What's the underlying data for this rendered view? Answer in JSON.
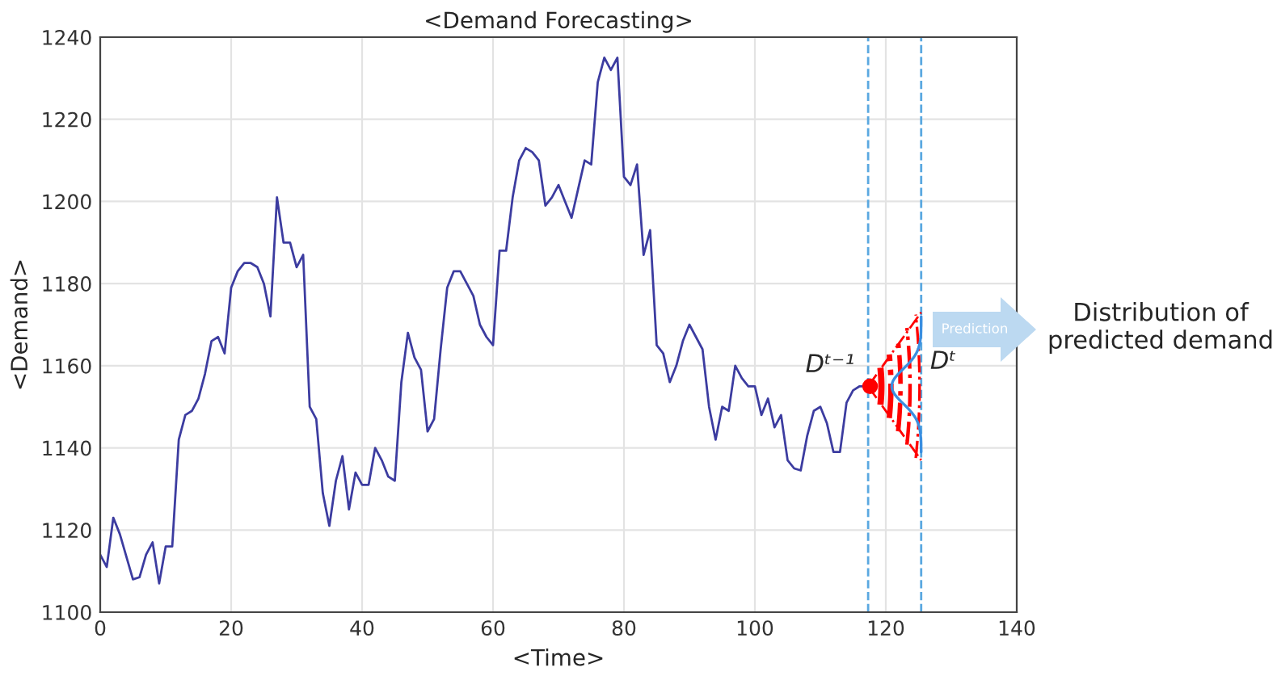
{
  "chart_data": {
    "type": "line",
    "title": "<Demand Forecasting>",
    "xlabel": "<Time>",
    "ylabel": "<Demand>",
    "x": [
      0,
      1,
      2,
      3,
      5,
      6,
      7,
      8,
      9,
      10,
      11,
      12,
      13,
      14,
      15,
      16,
      17,
      18,
      19,
      20,
      21,
      22,
      23,
      24,
      25,
      26,
      27,
      28,
      29,
      30,
      31,
      32,
      33,
      34,
      35,
      36,
      37,
      38,
      39,
      40,
      41,
      42,
      43,
      44,
      45,
      46,
      47,
      48,
      49,
      50,
      51,
      52,
      53,
      54,
      55,
      56,
      57,
      58,
      59,
      60,
      61,
      62,
      63,
      64,
      65,
      66,
      67,
      68,
      69,
      70,
      71,
      72,
      73,
      74,
      75,
      76,
      77,
      78,
      79,
      80,
      81,
      82,
      83,
      84,
      85,
      86,
      87,
      88,
      89,
      90,
      91,
      92,
      93,
      94,
      95,
      96,
      97,
      98,
      99,
      100,
      101,
      102,
      103,
      104,
      105,
      106,
      107,
      108,
      109,
      110,
      111,
      112,
      113,
      114,
      115,
      116,
      117
    ],
    "series": [
      {
        "color": "#3c3ca0",
        "values": [
          1114,
          1111,
          1123,
          1119,
          1108,
          1108.5,
          1114,
          1117,
          1107,
          1116,
          1116,
          1142,
          1148,
          1149,
          1152,
          1158,
          1166,
          1167,
          1163,
          1179,
          1183,
          1185,
          1185,
          1184,
          1180,
          1172,
          1201,
          1190,
          1190,
          1184,
          1187,
          1150,
          1147,
          1129,
          1121,
          1132,
          1138,
          1125,
          1134,
          1131,
          1131,
          1140,
          1137,
          1133,
          1132,
          1156,
          1168,
          1162,
          1159,
          1144,
          1147,
          1164,
          1179,
          1183,
          1183,
          1180,
          1177,
          1170,
          1167,
          1165,
          1188,
          1188,
          1201,
          1210,
          1213,
          1212,
          1210,
          1199,
          1201,
          1204,
          1200,
          1196,
          1203,
          1210,
          1209,
          1229,
          1235,
          1232,
          1235,
          1206,
          1204,
          1209,
          1187,
          1193,
          1165,
          1163,
          1156,
          1160,
          1166,
          1170,
          1167,
          1164,
          1150,
          1142,
          1150,
          1149,
          1160,
          1157,
          1155,
          1155,
          1148,
          1152,
          1145,
          1148,
          1137,
          1135,
          1134.5,
          1143,
          1149,
          1150,
          1146,
          1139,
          1139,
          1151,
          1154,
          1155,
          1155
        ]
      }
    ],
    "xlim": [
      0,
      140
    ],
    "ylim": [
      1100,
      1240
    ],
    "xticks": [
      0,
      20,
      40,
      60,
      80,
      100,
      120,
      140
    ],
    "yticks": [
      1100,
      1120,
      1140,
      1160,
      1180,
      1200,
      1220,
      1240
    ],
    "grid": true,
    "legend": false,
    "line_style": "solid",
    "marker": "none",
    "ref_lines": [
      {
        "axis": "x",
        "value": 117.3,
        "color": "#5aa8e0",
        "line_style": "dashed"
      },
      {
        "axis": "x",
        "value": 125.4,
        "color": "#5aa8e0",
        "line_style": "dashed"
      }
    ],
    "annotations": [
      {
        "text": "Dᵗ⁻¹",
        "x": 117.3,
        "y": 1155
      },
      {
        "text": "Dᵗ",
        "x": 125.4,
        "y": 1158
      },
      "Prediction",
      "Distribution of\npredicted demand"
    ]
  }
}
